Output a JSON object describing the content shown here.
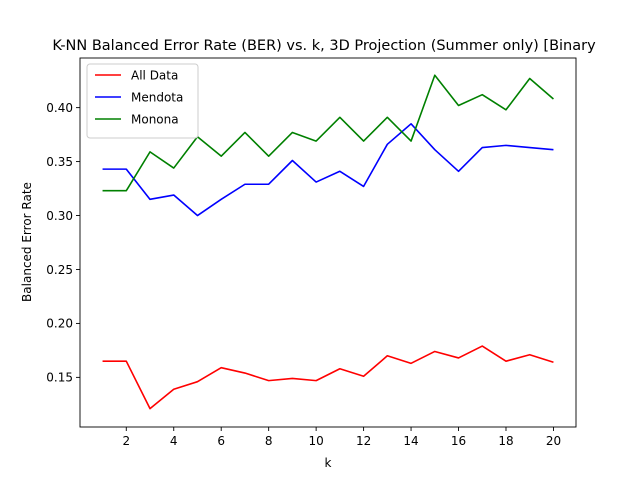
{
  "chart_data": {
    "type": "line",
    "title": "K-NN Balanced Error Rate (BER) vs. k, 3D Projection (Summer only) [Binary",
    "xlabel": "k",
    "ylabel": "Balanced Error Rate",
    "xlim": [
      0.05,
      20.95
    ],
    "ylim": [
      0.104,
      0.446
    ],
    "xticks": [
      2,
      4,
      6,
      8,
      10,
      12,
      14,
      16,
      18,
      20
    ],
    "yticks": [
      0.15,
      0.2,
      0.25,
      0.3,
      0.35,
      0.4
    ],
    "legend_position": "top-left",
    "grid": false,
    "x": [
      1,
      2,
      3,
      4,
      5,
      6,
      7,
      8,
      9,
      10,
      11,
      12,
      13,
      14,
      15,
      16,
      17,
      18,
      19,
      20
    ],
    "series": [
      {
        "name": "All Data",
        "color": "#ff0000",
        "values": [
          0.165,
          0.165,
          0.121,
          0.139,
          0.146,
          0.159,
          0.154,
          0.147,
          0.149,
          0.147,
          0.158,
          0.151,
          0.17,
          0.163,
          0.174,
          0.168,
          0.179,
          0.165,
          0.171,
          0.164
        ]
      },
      {
        "name": "Mendota",
        "color": "#0000ff",
        "values": [
          0.343,
          0.343,
          0.315,
          0.319,
          0.3,
          0.315,
          0.329,
          0.329,
          0.351,
          0.331,
          0.341,
          0.327,
          0.366,
          0.385,
          0.361,
          0.341,
          0.363,
          0.365,
          0.363,
          0.361
        ]
      },
      {
        "name": "Monona",
        "color": "#008000",
        "values": [
          0.323,
          0.323,
          0.359,
          0.344,
          0.373,
          0.355,
          0.377,
          0.355,
          0.377,
          0.369,
          0.391,
          0.369,
          0.391,
          0.369,
          0.43,
          0.402,
          0.412,
          0.398,
          0.427,
          0.408
        ]
      }
    ]
  }
}
